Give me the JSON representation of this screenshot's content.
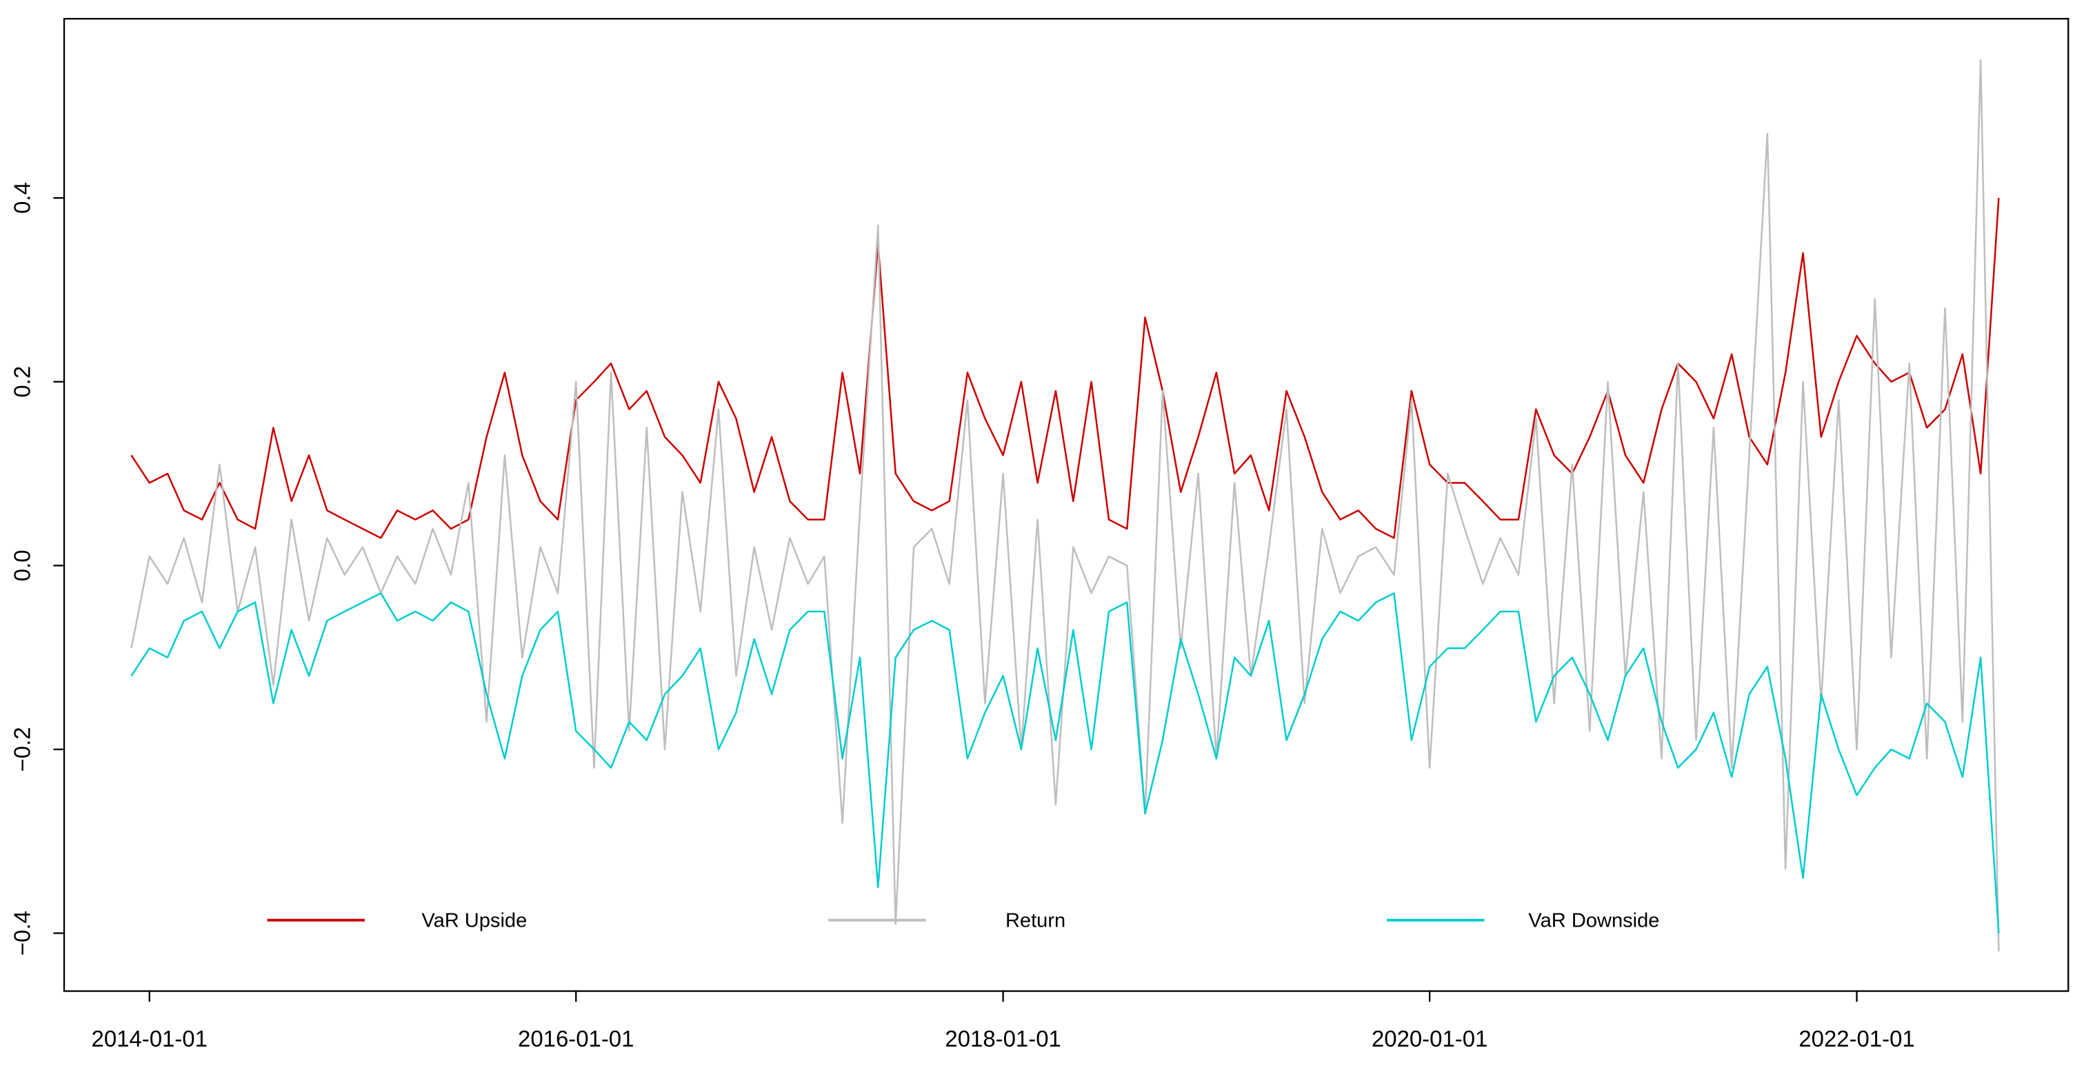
{
  "chart_data": {
    "type": "line",
    "x": [
      "2013-12-01",
      "2014-01-01",
      "2014-02-01",
      "2014-03-01",
      "2014-04-01",
      "2014-05-01",
      "2014-06-01",
      "2014-07-01",
      "2014-08-01",
      "2014-09-01",
      "2014-10-01",
      "2014-11-01",
      "2014-12-01",
      "2015-01-01",
      "2015-02-01",
      "2015-03-01",
      "2015-04-01",
      "2015-05-01",
      "2015-06-01",
      "2015-07-01",
      "2015-08-01",
      "2015-09-01",
      "2015-10-01",
      "2015-11-01",
      "2015-12-01",
      "2016-01-01",
      "2016-02-01",
      "2016-03-01",
      "2016-04-01",
      "2016-05-01",
      "2016-06-01",
      "2016-07-01",
      "2016-08-01",
      "2016-09-01",
      "2016-10-01",
      "2016-11-01",
      "2016-12-01",
      "2017-01-01",
      "2017-02-01",
      "2017-03-01",
      "2017-04-01",
      "2017-05-01",
      "2017-06-01",
      "2017-07-01",
      "2017-08-01",
      "2017-09-01",
      "2017-10-01",
      "2017-11-01",
      "2017-12-01",
      "2018-01-01",
      "2018-02-01",
      "2018-03-01",
      "2018-04-01",
      "2018-05-01",
      "2018-06-01",
      "2018-07-01",
      "2018-08-01",
      "2018-09-01",
      "2018-10-01",
      "2018-11-01",
      "2018-12-01",
      "2019-01-01",
      "2019-02-01",
      "2019-03-01",
      "2019-04-01",
      "2019-05-01",
      "2019-06-01",
      "2019-07-01",
      "2019-08-01",
      "2019-09-01",
      "2019-10-01",
      "2019-11-01",
      "2019-12-01",
      "2020-01-01",
      "2020-02-01",
      "2020-03-01",
      "2020-04-01",
      "2020-05-01",
      "2020-06-01",
      "2020-07-01",
      "2020-08-01",
      "2020-09-01",
      "2020-10-01",
      "2020-11-01",
      "2020-12-01",
      "2021-01-01",
      "2021-02-01",
      "2021-03-01",
      "2021-04-01",
      "2021-05-01",
      "2021-06-01",
      "2021-07-01",
      "2021-08-01",
      "2021-09-01",
      "2021-10-01",
      "2021-11-01",
      "2021-12-01",
      "2022-01-01",
      "2022-02-01",
      "2022-03-01",
      "2022-04-01",
      "2022-05-01",
      "2022-06-01",
      "2022-07-01",
      "2022-08-01",
      "2022-09-01"
    ],
    "series": [
      {
        "name": "VaR Upside",
        "color": "#cc0000",
        "values": [
          0.12,
          0.09,
          0.1,
          0.06,
          0.05,
          0.09,
          0.05,
          0.04,
          0.15,
          0.07,
          0.12,
          0.06,
          0.05,
          0.04,
          0.03,
          0.06,
          0.05,
          0.06,
          0.04,
          0.05,
          0.14,
          0.21,
          0.12,
          0.07,
          0.05,
          0.18,
          0.2,
          0.22,
          0.17,
          0.19,
          0.14,
          0.12,
          0.09,
          0.2,
          0.16,
          0.08,
          0.14,
          0.07,
          0.05,
          0.05,
          0.21,
          0.1,
          0.35,
          0.1,
          0.07,
          0.06,
          0.07,
          0.21,
          0.16,
          0.12,
          0.2,
          0.09,
          0.19,
          0.07,
          0.2,
          0.05,
          0.04,
          0.27,
          0.19,
          0.08,
          0.14,
          0.21,
          0.1,
          0.12,
          0.06,
          0.19,
          0.14,
          0.08,
          0.05,
          0.06,
          0.04,
          0.03,
          0.19,
          0.11,
          0.09,
          0.09,
          0.07,
          0.05,
          0.05,
          0.17,
          0.12,
          0.1,
          0.14,
          0.19,
          0.12,
          0.09,
          0.17,
          0.22,
          0.2,
          0.16,
          0.23,
          0.14,
          0.11,
          0.21,
          0.34,
          0.14,
          0.2,
          0.25,
          0.22,
          0.2,
          0.21,
          0.15,
          0.17,
          0.23,
          0.1,
          0.4
        ]
      },
      {
        "name": "Return",
        "color": "#bebebe",
        "values": [
          -0.09,
          0.01,
          -0.02,
          0.03,
          -0.04,
          0.11,
          -0.05,
          0.02,
          -0.13,
          0.05,
          -0.06,
          0.03,
          -0.01,
          0.02,
          -0.03,
          0.01,
          -0.02,
          0.04,
          -0.01,
          0.09,
          -0.17,
          0.12,
          -0.1,
          0.02,
          -0.03,
          0.2,
          -0.22,
          0.21,
          -0.18,
          0.15,
          -0.2,
          0.08,
          -0.05,
          0.17,
          -0.12,
          0.02,
          -0.07,
          0.03,
          -0.02,
          0.01,
          -0.28,
          0.06,
          0.37,
          -0.39,
          0.02,
          0.04,
          -0.02,
          0.18,
          -0.15,
          0.1,
          -0.2,
          0.05,
          -0.26,
          0.02,
          -0.03,
          0.01,
          0.0,
          -0.27,
          0.19,
          -0.09,
          0.1,
          -0.21,
          0.09,
          -0.12,
          0.02,
          0.17,
          -0.15,
          0.04,
          -0.03,
          0.01,
          0.02,
          -0.01,
          0.18,
          -0.22,
          0.1,
          0.04,
          -0.02,
          0.03,
          -0.01,
          0.16,
          -0.15,
          0.11,
          -0.18,
          0.2,
          -0.12,
          0.08,
          -0.21,
          0.22,
          -0.19,
          0.15,
          -0.22,
          0.12,
          0.47,
          -0.33,
          0.2,
          -0.15,
          0.18,
          -0.2,
          0.29,
          -0.1,
          0.22,
          -0.21,
          0.28,
          -0.17,
          0.55,
          -0.42
        ]
      },
      {
        "name": "VaR Downside",
        "color": "#00cdcd",
        "values": [
          -0.12,
          -0.09,
          -0.1,
          -0.06,
          -0.05,
          -0.09,
          -0.05,
          -0.04,
          -0.15,
          -0.07,
          -0.12,
          -0.06,
          -0.05,
          -0.04,
          -0.03,
          -0.06,
          -0.05,
          -0.06,
          -0.04,
          -0.05,
          -0.14,
          -0.21,
          -0.12,
          -0.07,
          -0.05,
          -0.18,
          -0.2,
          -0.22,
          -0.17,
          -0.19,
          -0.14,
          -0.12,
          -0.09,
          -0.2,
          -0.16,
          -0.08,
          -0.14,
          -0.07,
          -0.05,
          -0.05,
          -0.21,
          -0.1,
          -0.35,
          -0.1,
          -0.07,
          -0.06,
          -0.07,
          -0.21,
          -0.16,
          -0.12,
          -0.2,
          -0.09,
          -0.19,
          -0.07,
          -0.2,
          -0.05,
          -0.04,
          -0.27,
          -0.19,
          -0.08,
          -0.14,
          -0.21,
          -0.1,
          -0.12,
          -0.06,
          -0.19,
          -0.14,
          -0.08,
          -0.05,
          -0.06,
          -0.04,
          -0.03,
          -0.19,
          -0.11,
          -0.09,
          -0.09,
          -0.07,
          -0.05,
          -0.05,
          -0.17,
          -0.12,
          -0.1,
          -0.14,
          -0.19,
          -0.12,
          -0.09,
          -0.17,
          -0.22,
          -0.2,
          -0.16,
          -0.23,
          -0.14,
          -0.11,
          -0.21,
          -0.34,
          -0.14,
          -0.2,
          -0.25,
          -0.22,
          -0.2,
          -0.21,
          -0.15,
          -0.17,
          -0.23,
          -0.1,
          -0.4
        ]
      }
    ],
    "xlim": [
      "2013-08-08",
      "2022-12-29"
    ],
    "xticks": [
      "2014-01-01",
      "2016-01-01",
      "2018-01-01",
      "2020-01-01",
      "2022-01-01"
    ],
    "ylim": [
      -0.463,
      0.595
    ],
    "yticks": [
      {
        "value": -0.4,
        "label": "−0.4"
      },
      {
        "value": -0.2,
        "label": "−0.2"
      },
      {
        "value": 0,
        "label": "0.0"
      },
      0.2,
      0.4
    ],
    "grid": false,
    "legend": "bottom"
  }
}
